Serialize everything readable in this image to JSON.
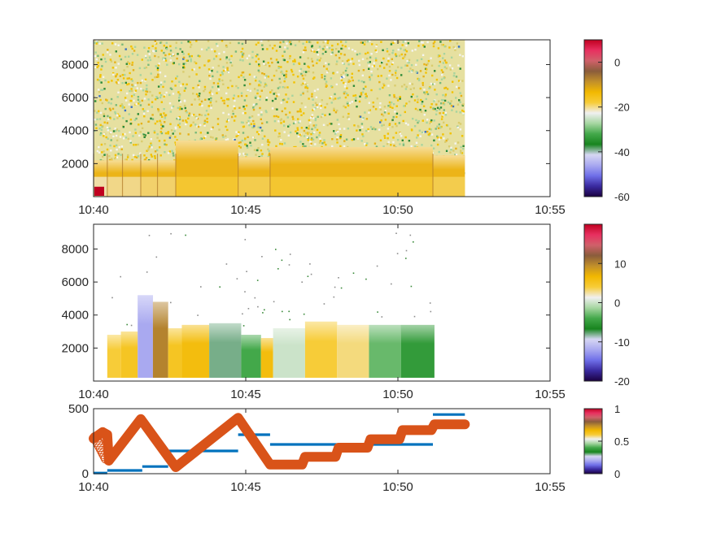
{
  "colors": {
    "axis": "#262626",
    "line1": "#0072BD",
    "line2": "#D95319",
    "colormap": [
      "#1a0040",
      "#3a2aa0",
      "#6f6fe8",
      "#a9a9f0",
      "#d6d6f2",
      "#18851f",
      "#43a84a",
      "#a6d6a1",
      "#f0f0f0",
      "#f7cc38",
      "#f2b800",
      "#c2902a",
      "#8a5d3b",
      "#d0606a",
      "#e83060",
      "#c00020"
    ]
  },
  "chart_data": [
    {
      "type": "heatmap",
      "x_ticks": [
        "10:40",
        "10:45",
        "10:50",
        "10:55"
      ],
      "x_minutes": [
        0,
        15
      ],
      "y_ticks": [
        2000,
        4000,
        6000,
        8000
      ],
      "ylim": [
        0,
        9500
      ],
      "data_xlim_minutes": [
        0,
        12.2
      ],
      "colorbar": {
        "clim": [
          -60,
          10
        ],
        "ticks": [
          -60,
          -40,
          -20,
          0
        ]
      },
      "segments": [
        {
          "t0": 0.0,
          "t1": 0.45,
          "level": -22
        },
        {
          "t0": 0.45,
          "t1": 0.95,
          "level": -21
        },
        {
          "t0": 0.95,
          "t1": 1.55,
          "level": -21
        },
        {
          "t0": 1.55,
          "t1": 2.1,
          "level": -20
        },
        {
          "t0": 2.1,
          "t1": 2.7,
          "level": -20
        },
        {
          "t0": 2.7,
          "t1": 4.75,
          "level": -18
        },
        {
          "t0": 4.75,
          "t1": 5.8,
          "level": -19
        },
        {
          "t0": 5.8,
          "t1": 11.15,
          "level": -18
        },
        {
          "t0": 11.15,
          "t1": 12.2,
          "level": -19
        }
      ],
      "bands": [
        {
          "t0": 0.0,
          "t1": 2.7,
          "top": 2200
        },
        {
          "t0": 2.7,
          "t1": 4.75,
          "top": 3400
        },
        {
          "t0": 4.75,
          "t1": 5.8,
          "top": 2400
        },
        {
          "t0": 5.8,
          "t1": 11.15,
          "top": 3000
        },
        {
          "t0": 11.15,
          "t1": 12.2,
          "top": 2500
        }
      ]
    },
    {
      "type": "heatmap",
      "x_ticks": [
        "10:40",
        "10:45",
        "10:50",
        "10:55"
      ],
      "x_minutes": [
        0,
        15
      ],
      "y_ticks": [
        2000,
        4000,
        6000,
        8000
      ],
      "ylim": [
        0,
        9500
      ],
      "colorbar": {
        "clim": [
          -20,
          20
        ],
        "ticks": [
          -20,
          -10,
          0,
          10
        ]
      },
      "blocks": [
        {
          "t0": 0.45,
          "t1": 0.9,
          "y0": 200,
          "y1": 2800,
          "value": 4
        },
        {
          "t0": 0.9,
          "t1": 1.45,
          "y0": 200,
          "y1": 3000,
          "value": 5
        },
        {
          "t0": 1.45,
          "t1": 1.95,
          "y0": 200,
          "y1": 5200,
          "value": -12
        },
        {
          "t0": 1.95,
          "t1": 2.45,
          "y0": 200,
          "y1": 4800,
          "value": 10
        },
        {
          "t0": 2.45,
          "t1": 2.9,
          "y0": 200,
          "y1": 3200,
          "value": 5
        },
        {
          "t0": 2.9,
          "t1": 3.8,
          "y0": 200,
          "y1": 3400,
          "value": 6
        },
        {
          "t0": 3.8,
          "t1": 4.85,
          "y0": 200,
          "y1": 3500,
          "value": -8
        },
        {
          "t0": 4.85,
          "t1": 5.5,
          "y0": 200,
          "y1": 2800,
          "value": -4
        },
        {
          "t0": 5.5,
          "t1": 5.9,
          "y0": 200,
          "y1": 2600,
          "value": 6
        },
        {
          "t0": 5.9,
          "t1": 6.95,
          "y0": 200,
          "y1": 3200,
          "value": 0
        },
        {
          "t0": 6.95,
          "t1": 8.0,
          "y0": 200,
          "y1": 3600,
          "value": 4
        },
        {
          "t0": 8.0,
          "t1": 9.05,
          "y0": 200,
          "y1": 3400,
          "value": 3
        },
        {
          "t0": 9.05,
          "t1": 10.1,
          "y0": 200,
          "y1": 3400,
          "value": -3
        },
        {
          "t0": 10.1,
          "t1": 11.2,
          "y0": 200,
          "y1": 3400,
          "value": -5
        }
      ]
    },
    {
      "type": "line",
      "x_ticks": [
        "10:40",
        "10:45",
        "10:50",
        "10:55"
      ],
      "x_minutes": [
        0,
        15
      ],
      "y_ticks": [
        0,
        500
      ],
      "ylim": [
        0,
        500
      ],
      "colorbar": {
        "clim": [
          0,
          1
        ],
        "ticks": [
          0,
          0.5,
          1
        ]
      },
      "series": [
        {
          "color": "#0072BD",
          "style": "steps",
          "steps": [
            {
              "t0": 0.0,
              "t1": 0.45,
              "y": 5
            },
            {
              "t0": 0.45,
              "t1": 1.6,
              "y": 25
            },
            {
              "t0": 1.6,
              "t1": 2.45,
              "y": 55
            },
            {
              "t0": 2.45,
              "t1": 4.75,
              "y": 175
            },
            {
              "t0": 4.75,
              "t1": 5.8,
              "y": 300
            },
            {
              "t0": 5.8,
              "t1": 8.0,
              "y": 225
            },
            {
              "t0": 8.0,
              "t1": 9.05,
              "y": 225
            },
            {
              "t0": 9.05,
              "t1": 11.15,
              "y": 225
            },
            {
              "t0": 11.15,
              "t1": 12.2,
              "y": 455
            }
          ]
        },
        {
          "color": "#D95319",
          "style": "markers",
          "points": [
            [
              0.0,
              270
            ],
            [
              0.3,
              320
            ],
            [
              0.45,
              300
            ],
            [
              0.5,
              100
            ],
            [
              1.55,
              420
            ],
            [
              2.7,
              50
            ],
            [
              4.75,
              430
            ],
            [
              5.8,
              70
            ],
            [
              6.85,
              70
            ],
            [
              6.95,
              130
            ],
            [
              7.95,
              130
            ],
            [
              8.05,
              200
            ],
            [
              9.0,
              200
            ],
            [
              9.1,
              265
            ],
            [
              10.05,
              265
            ],
            [
              10.15,
              335
            ],
            [
              11.1,
              335
            ],
            [
              11.2,
              380
            ],
            [
              12.2,
              380
            ]
          ]
        }
      ]
    }
  ]
}
